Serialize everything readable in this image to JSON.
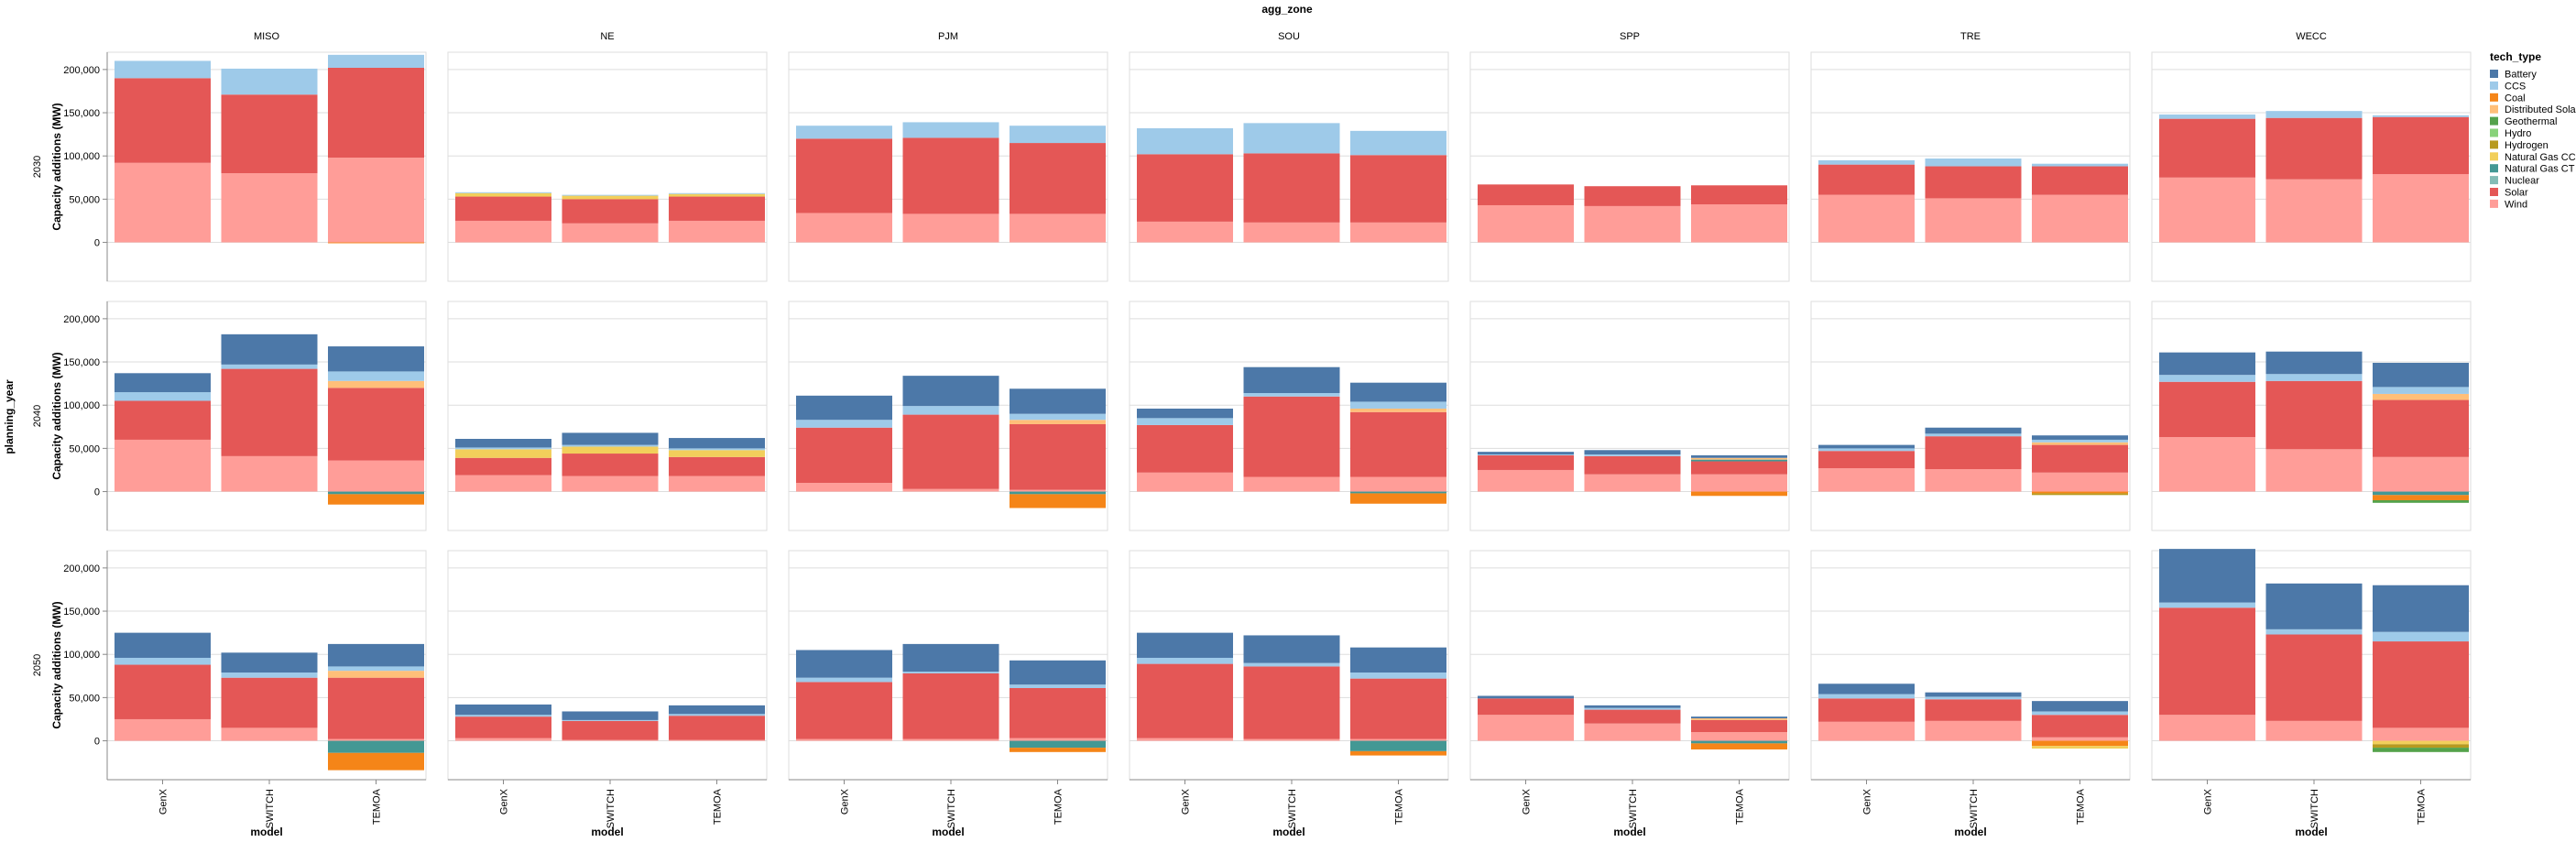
{
  "chart_data": {
    "type": "bar",
    "stacked": true,
    "facet_column_title": "agg_zone",
    "facet_row_title": "planning_year",
    "columns": [
      "MISO",
      "NE",
      "PJM",
      "SOU",
      "SPP",
      "TRE",
      "WECC"
    ],
    "rows": [
      "2030",
      "2040",
      "2050"
    ],
    "categories": [
      "GenX",
      "SWITCH",
      "TEMOA"
    ],
    "xlabel": "model",
    "ylabel": "Capacity additions (MW)",
    "ylim": [
      -45000,
      220000
    ],
    "yticks": [
      0,
      50000,
      100000,
      150000,
      200000
    ],
    "ytick_labels": [
      "0",
      "50,000",
      "100,000",
      "150,000",
      "200,000"
    ],
    "grid": true,
    "legend": {
      "title": "tech_type",
      "placement": "right",
      "entries": [
        "Battery",
        "CCS",
        "Coal",
        "Distributed Solar",
        "Geothermal",
        "Hydro",
        "Hydrogen",
        "Natural Gas CC",
        "Natural Gas CT",
        "Nuclear",
        "Solar",
        "Wind"
      ]
    },
    "colors": {
      "Battery": "#4c78a8",
      "CCS": "#9ecae9",
      "Coal": "#f58518",
      "Distributed Solar": "#ffbf79",
      "Geothermal": "#54a24b",
      "Hydro": "#88d27a",
      "Hydrogen": "#b79a20",
      "Natural Gas CC": "#f2cf5b",
      "Natural Gas CT": "#439894",
      "Nuclear": "#83bcb6",
      "Solar": "#e45756",
      "Wind": "#ff9d98"
    },
    "stack_order": [
      "Wind",
      "Solar",
      "Nuclear",
      "Natural Gas CT",
      "Natural Gas CC",
      "Hydrogen",
      "Hydro",
      "Geothermal",
      "Distributed Solar",
      "CCS",
      "Battery"
    ],
    "negative_stack_order": [
      "Natural Gas CT",
      "Coal",
      "Natural Gas CC",
      "Hydrogen",
      "Geothermal"
    ],
    "data": {
      "2030": {
        "MISO": {
          "GenX": {
            "Wind": 92000,
            "Solar": 98000,
            "CCS": 20000
          },
          "SWITCH": {
            "Wind": 80000,
            "Solar": 91000,
            "CCS": 30000
          },
          "TEMOA": {
            "Wind": 98000,
            "Solar": 104000,
            "CCS": 15000,
            "Coal": -1000
          }
        },
        "NE": {
          "GenX": {
            "Wind": 25000,
            "Solar": 28000,
            "Natural Gas CC": 4000,
            "CCS": 1000
          },
          "SWITCH": {
            "Wind": 22000,
            "Solar": 28000,
            "Natural Gas CC": 4000,
            "CCS": 1000
          },
          "TEMOA": {
            "Wind": 25000,
            "Solar": 28000,
            "Natural Gas CC": 3000,
            "CCS": 1000
          }
        },
        "PJM": {
          "GenX": {
            "Wind": 34000,
            "Solar": 86000,
            "CCS": 15000
          },
          "SWITCH": {
            "Wind": 33000,
            "Solar": 88000,
            "CCS": 18000
          },
          "TEMOA": {
            "Wind": 33000,
            "Solar": 82000,
            "CCS": 20000
          }
        },
        "SOU": {
          "GenX": {
            "Wind": 24000,
            "Solar": 78000,
            "CCS": 30000
          },
          "SWITCH": {
            "Wind": 23000,
            "Solar": 80000,
            "CCS": 35000
          },
          "TEMOA": {
            "Wind": 23000,
            "Solar": 78000,
            "CCS": 28000
          }
        },
        "SPP": {
          "GenX": {
            "Wind": 43000,
            "Solar": 24000
          },
          "SWITCH": {
            "Wind": 42000,
            "Solar": 23000
          },
          "TEMOA": {
            "Wind": 44000,
            "Solar": 22000
          }
        },
        "TRE": {
          "GenX": {
            "Wind": 55000,
            "Solar": 35000,
            "CCS": 5000
          },
          "SWITCH": {
            "Wind": 51000,
            "Solar": 37000,
            "CCS": 9000
          },
          "TEMOA": {
            "Wind": 55000,
            "Solar": 33000,
            "CCS": 3000
          }
        },
        "WECC": {
          "GenX": {
            "Wind": 75000,
            "Solar": 68000,
            "CCS": 5000
          },
          "SWITCH": {
            "Wind": 73000,
            "Solar": 71000,
            "CCS": 8000
          },
          "TEMOA": {
            "Wind": 79000,
            "Solar": 66000,
            "CCS": 2000
          }
        }
      },
      "2040": {
        "MISO": {
          "GenX": {
            "Wind": 60000,
            "Solar": 45000,
            "CCS": 10000,
            "Battery": 22000
          },
          "SWITCH": {
            "Wind": 41000,
            "Solar": 101000,
            "CCS": 5000,
            "Battery": 35000
          },
          "TEMOA": {
            "Wind": 36000,
            "Solar": 84000,
            "Distributed Solar": 8000,
            "CCS": 11000,
            "Battery": 29000,
            "Natural Gas CT": -3000,
            "Coal": -12000
          }
        },
        "NE": {
          "GenX": {
            "Wind": 19000,
            "Solar": 20000,
            "Natural Gas CC": 10000,
            "CCS": 2000,
            "Battery": 10000
          },
          "SWITCH": {
            "Wind": 18000,
            "Solar": 26000,
            "Natural Gas CC": 8000,
            "CCS": 2000,
            "Battery": 14000
          },
          "TEMOA": {
            "Wind": 18000,
            "Solar": 22000,
            "Natural Gas CC": 8000,
            "CCS": 2000,
            "Battery": 12000
          }
        },
        "PJM": {
          "GenX": {
            "Wind": 10000,
            "Solar": 64000,
            "CCS": 9000,
            "Battery": 28000
          },
          "SWITCH": {
            "Wind": 3000,
            "Solar": 86000,
            "CCS": 10000,
            "Battery": 35000
          },
          "TEMOA": {
            "Wind": 2000,
            "Solar": 76000,
            "Distributed Solar": 5000,
            "CCS": 7000,
            "Battery": 29000,
            "Natural Gas CT": -3000,
            "Coal": -16000
          }
        },
        "SOU": {
          "GenX": {
            "Wind": 22000,
            "Solar": 55000,
            "CCS": 8000,
            "Battery": 11000
          },
          "SWITCH": {
            "Wind": 17000,
            "Solar": 93000,
            "CCS": 4000,
            "Battery": 30000
          },
          "TEMOA": {
            "Wind": 17000,
            "Solar": 75000,
            "Distributed Solar": 4000,
            "CCS": 8000,
            "Battery": 22000,
            "Natural Gas CT": -2000,
            "Coal": -12000
          }
        },
        "SPP": {
          "GenX": {
            "Wind": 25000,
            "Solar": 17000,
            "CCS": 1000,
            "Battery": 3000
          },
          "SWITCH": {
            "Wind": 20000,
            "Solar": 21000,
            "CCS": 2000,
            "Battery": 5000
          },
          "TEMOA": {
            "Wind": 20000,
            "Solar": 15000,
            "Distributed Solar": 2000,
            "Natural Gas CT": 2000,
            "Battery": 3000,
            "Coal": -5000
          }
        },
        "TRE": {
          "GenX": {
            "Wind": 27000,
            "Solar": 20000,
            "CCS": 3000,
            "Battery": 4000
          },
          "SWITCH": {
            "Wind": 26000,
            "Solar": 38000,
            "CCS": 3000,
            "Battery": 7000
          },
          "TEMOA": {
            "Wind": 22000,
            "Solar": 32000,
            "Distributed Solar": 3000,
            "CCS": 3000,
            "Battery": 5000,
            "Hydrogen": -2000,
            "Coal": -2000
          }
        },
        "WECC": {
          "GenX": {
            "Wind": 63000,
            "Solar": 64000,
            "CCS": 8000,
            "Battery": 26000
          },
          "SWITCH": {
            "Wind": 49000,
            "Solar": 79000,
            "CCS": 8000,
            "Battery": 26000
          },
          "TEMOA": {
            "Wind": 40000,
            "Solar": 66000,
            "Distributed Solar": 7000,
            "CCS": 8000,
            "Battery": 28000,
            "Natural Gas CT": -4000,
            "Geothermal": -3000,
            "Coal": -6000
          }
        }
      },
      "2050": {
        "MISO": {
          "GenX": {
            "Wind": 25000,
            "Solar": 63000,
            "CCS": 8000,
            "Battery": 29000
          },
          "SWITCH": {
            "Wind": 15000,
            "Solar": 58000,
            "CCS": 6000,
            "Battery": 23000
          },
          "TEMOA": {
            "Wind": 2000,
            "Solar": 71000,
            "Distributed Solar": 8000,
            "CCS": 5000,
            "Battery": 26000,
            "Natural Gas CT": -14000,
            "Coal": -20000
          }
        },
        "NE": {
          "GenX": {
            "Wind": 3000,
            "Solar": 25000,
            "CCS": 2000,
            "Battery": 12000
          },
          "SWITCH": {
            "Wind": 1000,
            "Solar": 22000,
            "CCS": 1000,
            "Battery": 10000
          },
          "TEMOA": {
            "Wind": 1000,
            "Solar": 28000,
            "CCS": 2000,
            "Battery": 10000
          }
        },
        "PJM": {
          "GenX": {
            "Wind": 2000,
            "Solar": 66000,
            "CCS": 5000,
            "Battery": 32000
          },
          "SWITCH": {
            "Wind": 2000,
            "Solar": 76000,
            "CCS": 2000,
            "Battery": 32000
          },
          "TEMOA": {
            "Wind": 3000,
            "Solar": 58000,
            "CCS": 4000,
            "Battery": 28000,
            "Natural Gas CT": -8000,
            "Coal": -5000
          }
        },
        "SOU": {
          "GenX": {
            "Wind": 3000,
            "Solar": 86000,
            "CCS": 7000,
            "Battery": 29000
          },
          "SWITCH": {
            "Wind": 2000,
            "Solar": 84000,
            "CCS": 4000,
            "Battery": 32000
          },
          "TEMOA": {
            "Wind": 2000,
            "Solar": 70000,
            "CCS": 7000,
            "Battery": 29000,
            "Natural Gas CT": -12000,
            "Coal": -5000
          }
        },
        "SPP": {
          "GenX": {
            "Wind": 30000,
            "Solar": 19000,
            "Battery": 3000
          },
          "SWITCH": {
            "Wind": 20000,
            "Solar": 16000,
            "CCS": 2000,
            "Battery": 3000
          },
          "TEMOA": {
            "Wind": 10000,
            "Solar": 14000,
            "Distributed Solar": 2000,
            "Battery": 2000,
            "Natural Gas CT": -3000,
            "Coal": -7000
          }
        },
        "TRE": {
          "GenX": {
            "Wind": 22000,
            "Solar": 27000,
            "CCS": 5000,
            "Battery": 12000
          },
          "SWITCH": {
            "Wind": 23000,
            "Solar": 25000,
            "CCS": 3000,
            "Battery": 5000
          },
          "TEMOA": {
            "Wind": 4000,
            "Solar": 26000,
            "CCS": 4000,
            "Battery": 12000,
            "Natural Gas CC": -3000,
            "Coal": -6000
          }
        },
        "WECC": {
          "GenX": {
            "Wind": 30000,
            "Solar": 124000,
            "CCS": 6000,
            "Battery": 62000
          },
          "SWITCH": {
            "Wind": 23000,
            "Solar": 100000,
            "CCS": 6000,
            "Battery": 53000
          },
          "TEMOA": {
            "Wind": 15000,
            "Solar": 100000,
            "CCS": 11000,
            "Battery": 54000,
            "Hydrogen": -4000,
            "Geothermal": -5000,
            "Natural Gas CC": -4000
          }
        }
      }
    }
  }
}
